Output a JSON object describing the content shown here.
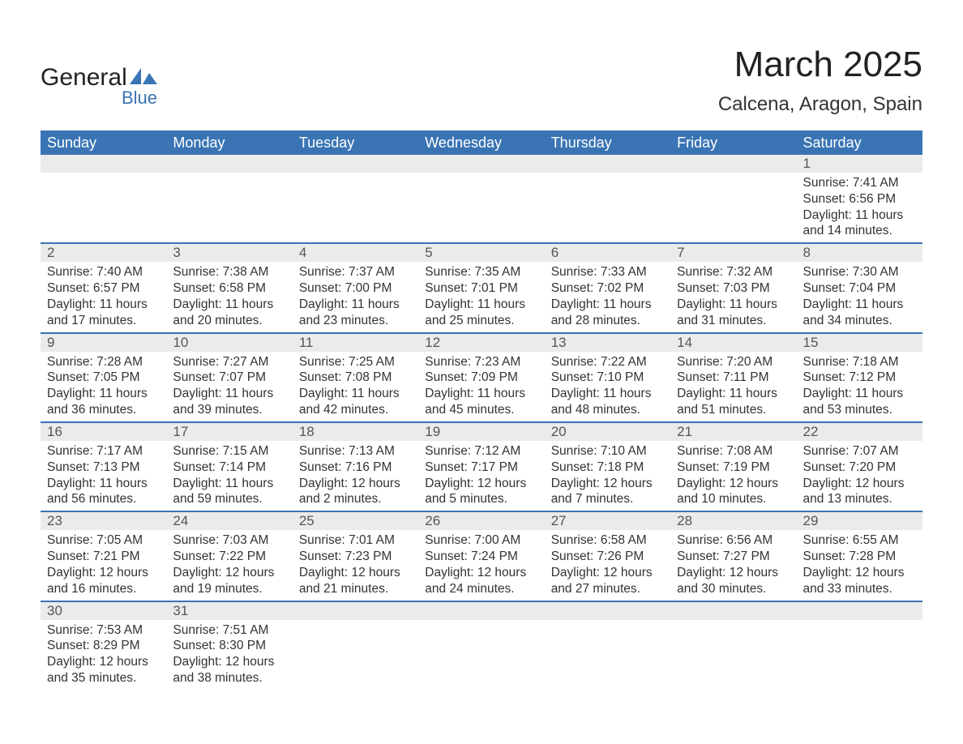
{
  "brand": {
    "text_top": "General",
    "text_bottom": "Blue",
    "flag_color": "#3a74b4",
    "text_color": "#222222"
  },
  "title": {
    "month_year": "March 2025",
    "location": "Calcena, Aragon, Spain"
  },
  "colors": {
    "header_bg": "#3a74b4",
    "header_text": "#ffffff",
    "daynum_bg": "#ebebeb",
    "daynum_text": "#555555",
    "body_text": "#333333",
    "row_divider": "#3a74b4",
    "page_bg": "#ffffff"
  },
  "weekdays": [
    "Sunday",
    "Monday",
    "Tuesday",
    "Wednesday",
    "Thursday",
    "Friday",
    "Saturday"
  ],
  "weeks": [
    [
      {
        "empty": true
      },
      {
        "empty": true
      },
      {
        "empty": true
      },
      {
        "empty": true
      },
      {
        "empty": true
      },
      {
        "empty": true
      },
      {
        "daynum": "1",
        "sunrise": "Sunrise: 7:41 AM",
        "sunset": "Sunset: 6:56 PM",
        "daylight1": "Daylight: 11 hours",
        "daylight2": "and 14 minutes."
      }
    ],
    [
      {
        "daynum": "2",
        "sunrise": "Sunrise: 7:40 AM",
        "sunset": "Sunset: 6:57 PM",
        "daylight1": "Daylight: 11 hours",
        "daylight2": "and 17 minutes."
      },
      {
        "daynum": "3",
        "sunrise": "Sunrise: 7:38 AM",
        "sunset": "Sunset: 6:58 PM",
        "daylight1": "Daylight: 11 hours",
        "daylight2": "and 20 minutes."
      },
      {
        "daynum": "4",
        "sunrise": "Sunrise: 7:37 AM",
        "sunset": "Sunset: 7:00 PM",
        "daylight1": "Daylight: 11 hours",
        "daylight2": "and 23 minutes."
      },
      {
        "daynum": "5",
        "sunrise": "Sunrise: 7:35 AM",
        "sunset": "Sunset: 7:01 PM",
        "daylight1": "Daylight: 11 hours",
        "daylight2": "and 25 minutes."
      },
      {
        "daynum": "6",
        "sunrise": "Sunrise: 7:33 AM",
        "sunset": "Sunset: 7:02 PM",
        "daylight1": "Daylight: 11 hours",
        "daylight2": "and 28 minutes."
      },
      {
        "daynum": "7",
        "sunrise": "Sunrise: 7:32 AM",
        "sunset": "Sunset: 7:03 PM",
        "daylight1": "Daylight: 11 hours",
        "daylight2": "and 31 minutes."
      },
      {
        "daynum": "8",
        "sunrise": "Sunrise: 7:30 AM",
        "sunset": "Sunset: 7:04 PM",
        "daylight1": "Daylight: 11 hours",
        "daylight2": "and 34 minutes."
      }
    ],
    [
      {
        "daynum": "9",
        "sunrise": "Sunrise: 7:28 AM",
        "sunset": "Sunset: 7:05 PM",
        "daylight1": "Daylight: 11 hours",
        "daylight2": "and 36 minutes."
      },
      {
        "daynum": "10",
        "sunrise": "Sunrise: 7:27 AM",
        "sunset": "Sunset: 7:07 PM",
        "daylight1": "Daylight: 11 hours",
        "daylight2": "and 39 minutes."
      },
      {
        "daynum": "11",
        "sunrise": "Sunrise: 7:25 AM",
        "sunset": "Sunset: 7:08 PM",
        "daylight1": "Daylight: 11 hours",
        "daylight2": "and 42 minutes."
      },
      {
        "daynum": "12",
        "sunrise": "Sunrise: 7:23 AM",
        "sunset": "Sunset: 7:09 PM",
        "daylight1": "Daylight: 11 hours",
        "daylight2": "and 45 minutes."
      },
      {
        "daynum": "13",
        "sunrise": "Sunrise: 7:22 AM",
        "sunset": "Sunset: 7:10 PM",
        "daylight1": "Daylight: 11 hours",
        "daylight2": "and 48 minutes."
      },
      {
        "daynum": "14",
        "sunrise": "Sunrise: 7:20 AM",
        "sunset": "Sunset: 7:11 PM",
        "daylight1": "Daylight: 11 hours",
        "daylight2": "and 51 minutes."
      },
      {
        "daynum": "15",
        "sunrise": "Sunrise: 7:18 AM",
        "sunset": "Sunset: 7:12 PM",
        "daylight1": "Daylight: 11 hours",
        "daylight2": "and 53 minutes."
      }
    ],
    [
      {
        "daynum": "16",
        "sunrise": "Sunrise: 7:17 AM",
        "sunset": "Sunset: 7:13 PM",
        "daylight1": "Daylight: 11 hours",
        "daylight2": "and 56 minutes."
      },
      {
        "daynum": "17",
        "sunrise": "Sunrise: 7:15 AM",
        "sunset": "Sunset: 7:14 PM",
        "daylight1": "Daylight: 11 hours",
        "daylight2": "and 59 minutes."
      },
      {
        "daynum": "18",
        "sunrise": "Sunrise: 7:13 AM",
        "sunset": "Sunset: 7:16 PM",
        "daylight1": "Daylight: 12 hours",
        "daylight2": "and 2 minutes."
      },
      {
        "daynum": "19",
        "sunrise": "Sunrise: 7:12 AM",
        "sunset": "Sunset: 7:17 PM",
        "daylight1": "Daylight: 12 hours",
        "daylight2": "and 5 minutes."
      },
      {
        "daynum": "20",
        "sunrise": "Sunrise: 7:10 AM",
        "sunset": "Sunset: 7:18 PM",
        "daylight1": "Daylight: 12 hours",
        "daylight2": "and 7 minutes."
      },
      {
        "daynum": "21",
        "sunrise": "Sunrise: 7:08 AM",
        "sunset": "Sunset: 7:19 PM",
        "daylight1": "Daylight: 12 hours",
        "daylight2": "and 10 minutes."
      },
      {
        "daynum": "22",
        "sunrise": "Sunrise: 7:07 AM",
        "sunset": "Sunset: 7:20 PM",
        "daylight1": "Daylight: 12 hours",
        "daylight2": "and 13 minutes."
      }
    ],
    [
      {
        "daynum": "23",
        "sunrise": "Sunrise: 7:05 AM",
        "sunset": "Sunset: 7:21 PM",
        "daylight1": "Daylight: 12 hours",
        "daylight2": "and 16 minutes."
      },
      {
        "daynum": "24",
        "sunrise": "Sunrise: 7:03 AM",
        "sunset": "Sunset: 7:22 PM",
        "daylight1": "Daylight: 12 hours",
        "daylight2": "and 19 minutes."
      },
      {
        "daynum": "25",
        "sunrise": "Sunrise: 7:01 AM",
        "sunset": "Sunset: 7:23 PM",
        "daylight1": "Daylight: 12 hours",
        "daylight2": "and 21 minutes."
      },
      {
        "daynum": "26",
        "sunrise": "Sunrise: 7:00 AM",
        "sunset": "Sunset: 7:24 PM",
        "daylight1": "Daylight: 12 hours",
        "daylight2": "and 24 minutes."
      },
      {
        "daynum": "27",
        "sunrise": "Sunrise: 6:58 AM",
        "sunset": "Sunset: 7:26 PM",
        "daylight1": "Daylight: 12 hours",
        "daylight2": "and 27 minutes."
      },
      {
        "daynum": "28",
        "sunrise": "Sunrise: 6:56 AM",
        "sunset": "Sunset: 7:27 PM",
        "daylight1": "Daylight: 12 hours",
        "daylight2": "and 30 minutes."
      },
      {
        "daynum": "29",
        "sunrise": "Sunrise: 6:55 AM",
        "sunset": "Sunset: 7:28 PM",
        "daylight1": "Daylight: 12 hours",
        "daylight2": "and 33 minutes."
      }
    ],
    [
      {
        "daynum": "30",
        "sunrise": "Sunrise: 7:53 AM",
        "sunset": "Sunset: 8:29 PM",
        "daylight1": "Daylight: 12 hours",
        "daylight2": "and 35 minutes."
      },
      {
        "daynum": "31",
        "sunrise": "Sunrise: 7:51 AM",
        "sunset": "Sunset: 8:30 PM",
        "daylight1": "Daylight: 12 hours",
        "daylight2": "and 38 minutes."
      },
      {
        "empty": true
      },
      {
        "empty": true
      },
      {
        "empty": true
      },
      {
        "empty": true
      },
      {
        "empty": true
      }
    ]
  ]
}
